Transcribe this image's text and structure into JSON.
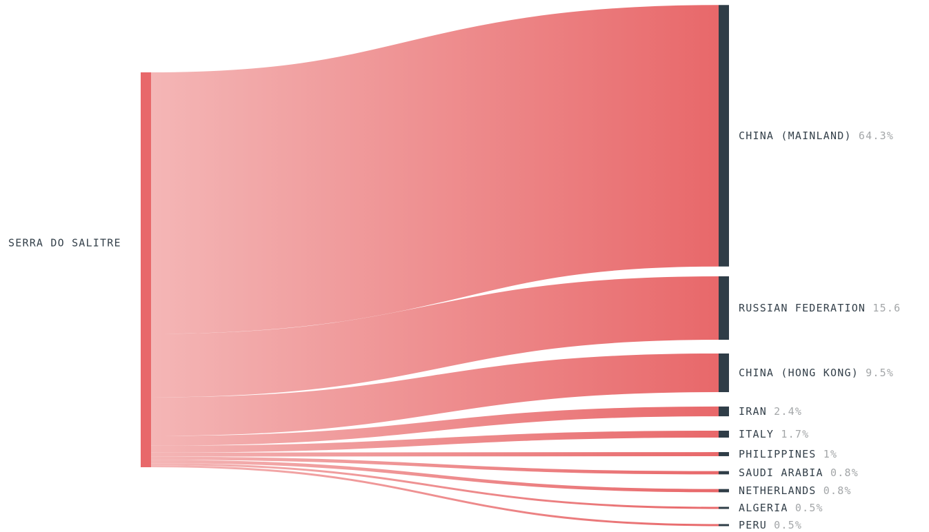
{
  "chart_data": {
    "type": "sankey",
    "source": "SERRA DO SALITRE",
    "flows": [
      {
        "target": "CHINA (MAINLAND)",
        "value": 64.3,
        "label": "64.3%"
      },
      {
        "target": "RUSSIAN FEDERATION",
        "value": 15.6,
        "label": "15.6"
      },
      {
        "target": "CHINA (HONG KONG)",
        "value": 9.5,
        "label": "9.5%"
      },
      {
        "target": "IRAN",
        "value": 2.4,
        "label": "2.4%"
      },
      {
        "target": "ITALY",
        "value": 1.7,
        "label": "1.7%"
      },
      {
        "target": "PHILIPPINES",
        "value": 1,
        "label": "1%"
      },
      {
        "target": "SAUDI ARABIA",
        "value": 0.8,
        "label": "0.8%"
      },
      {
        "target": "NETHERLANDS",
        "value": 0.8,
        "label": "0.8%"
      },
      {
        "target": "ALGERIA",
        "value": 0.5,
        "label": "0.5%"
      },
      {
        "target": "PERU",
        "value": 0.5,
        "label": "0.5%"
      }
    ],
    "colors": {
      "source_node": "#e8686a",
      "target_node": "#2f3d47",
      "flow_start": "#f4b6b6",
      "flow_end": "#e8686a"
    }
  }
}
